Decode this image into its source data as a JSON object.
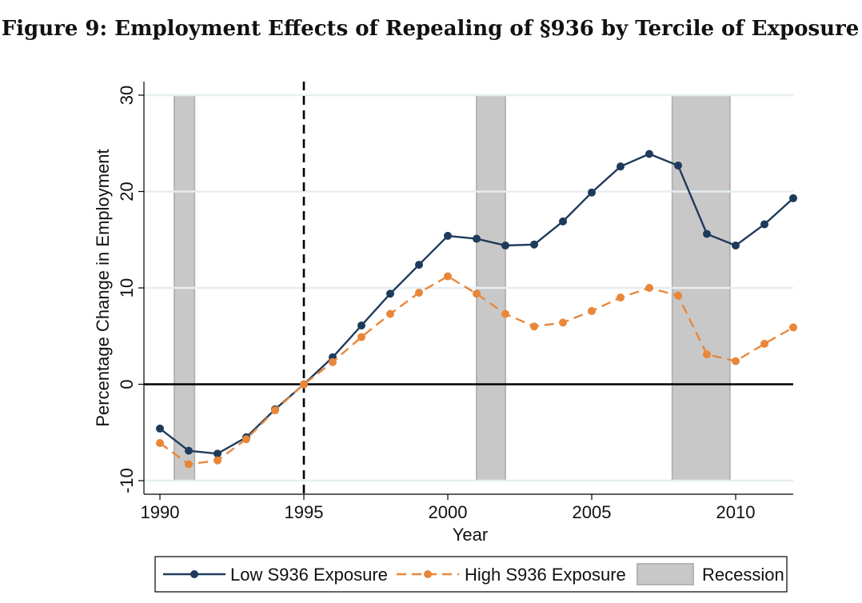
{
  "chart_data": {
    "type": "line",
    "title": "Figure 9: Employment Effects of Repealing of §936 by Tercile of Exposure",
    "xlabel": "Year",
    "ylabel": "Percentage Change in Employment",
    "xlim": [
      1990,
      2012
    ],
    "ylim": [
      -10,
      30
    ],
    "x_ticks": [
      "1990",
      "1995",
      "2000",
      "2005",
      "2010"
    ],
    "y_ticks": [
      "-10",
      "0",
      "10",
      "20",
      "30"
    ],
    "grid": true,
    "vertical_line": 1995,
    "horizontal_line": 0,
    "x": [
      1990,
      1991,
      1992,
      1993,
      1994,
      1995,
      1996,
      1997,
      1998,
      1999,
      2000,
      2001,
      2002,
      2003,
      2004,
      2005,
      2006,
      2007,
      2008,
      2009,
      2010,
      2011,
      2012
    ],
    "series": [
      {
        "name": "Low S936 Exposure",
        "color": "#1f3b5c",
        "style": "solid",
        "values": [
          -4.6,
          -6.9,
          -7.2,
          -5.5,
          -2.6,
          0.0,
          2.8,
          6.1,
          9.4,
          12.4,
          15.4,
          15.1,
          14.4,
          14.5,
          16.9,
          19.9,
          22.6,
          23.9,
          22.7,
          15.6,
          14.4,
          16.6,
          19.3
        ]
      },
      {
        "name": "High S936 Exposure",
        "color": "#e8873a",
        "style": "dashed",
        "values": [
          -6.1,
          -8.3,
          -7.9,
          -5.7,
          -2.7,
          0.0,
          2.3,
          4.9,
          7.3,
          9.5,
          11.2,
          9.4,
          7.3,
          6.0,
          6.4,
          7.6,
          9.0,
          10.0,
          9.2,
          3.1,
          2.4,
          4.2,
          5.9
        ]
      }
    ],
    "recessions": [
      [
        1990.5,
        1991.2
      ],
      [
        2001.0,
        2002.0
      ],
      [
        2007.8,
        2009.8
      ]
    ],
    "recession_label": "Recession",
    "legend_placement": "bottom"
  }
}
